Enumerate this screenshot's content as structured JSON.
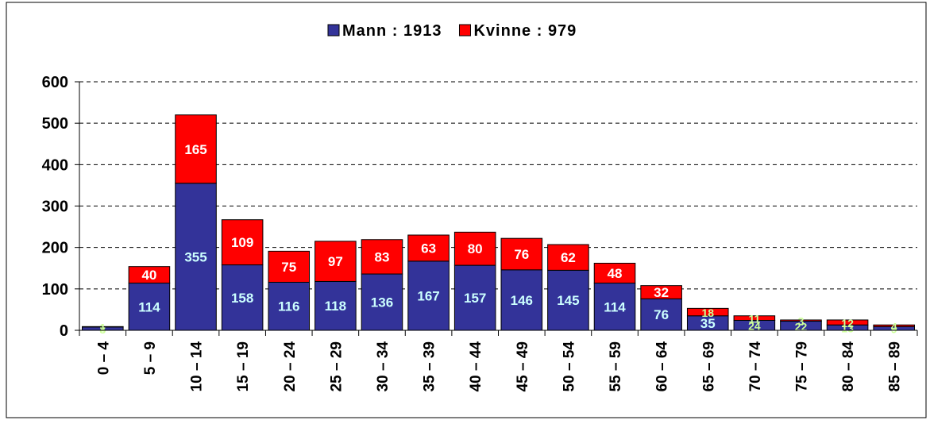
{
  "chart_data": {
    "type": "bar",
    "stacked": true,
    "categories": [
      "0 – 4",
      "5 – 9",
      "10 – 14",
      "15 – 19",
      "20 – 24",
      "25 – 29",
      "30 – 34",
      "35 – 39",
      "40 – 44",
      "45 – 49",
      "50 – 54",
      "55 – 59",
      "60 – 64",
      "65 – 69",
      "70 – 74",
      "75 – 79",
      "80 – 84",
      "85 – 89"
    ],
    "series": [
      {
        "name": "Mann : 1913",
        "color": "#333399",
        "values": [
          8,
          114,
          355,
          158,
          116,
          118,
          136,
          167,
          157,
          146,
          145,
          114,
          76,
          35,
          24,
          22,
          13,
          9
        ]
      },
      {
        "name": "Kvinne : 979",
        "color": "#ff0000",
        "values": [
          1,
          40,
          165,
          109,
          75,
          97,
          83,
          63,
          80,
          76,
          62,
          48,
          32,
          18,
          11,
          3,
          12,
          4
        ]
      }
    ],
    "ylim": [
      0,
      600
    ],
    "yticks": [
      0,
      100,
      200,
      300,
      400,
      500,
      600
    ],
    "grid": true,
    "legend": "top"
  }
}
